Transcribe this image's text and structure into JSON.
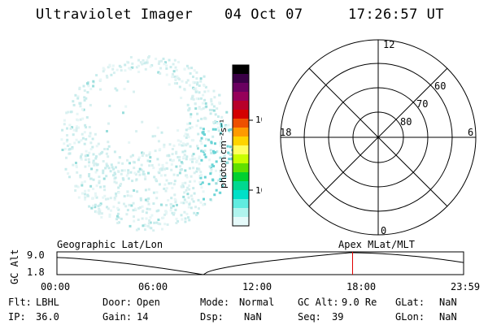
{
  "header": {
    "instrument": "Ultraviolet Imager",
    "date": "04 Oct 07",
    "time": "17:26:57 UT"
  },
  "colorbar": {
    "label": "photon cm⁻²s⁻¹",
    "ticks": [
      "100",
      "10"
    ],
    "colors": [
      "#000000",
      "#3a0046",
      "#6a0060",
      "#96005a",
      "#b8002a",
      "#d40000",
      "#ee5000",
      "#ff9a00",
      "#ffd400",
      "#ffff60",
      "#c8ff00",
      "#60e000",
      "#00d030",
      "#00d890",
      "#00e0c8",
      "#60ece0",
      "#b0f4ee",
      "#e6fafa"
    ]
  },
  "polar_plot": {
    "mlt_labels": {
      "top": "12",
      "left": "18",
      "right": "6",
      "bottom": "0"
    },
    "lat_labels": [
      "60",
      "70",
      "80"
    ]
  },
  "timeline": {
    "axis_label": "GC Alt",
    "y_ticks": [
      "9.0",
      "1.8"
    ],
    "x_ticks": [
      "00:00",
      "06:00",
      "12:00",
      "18:00",
      "23:59"
    ],
    "left_title": "Geographic Lat/Lon",
    "right_title": "Apex MLat/MLT",
    "current_marker_color": "#e00000"
  },
  "status": {
    "col1": [
      {
        "k": "Flt:",
        "v": "LBHL"
      },
      {
        "k": "IP:",
        "v": "36.0"
      }
    ],
    "col2": [
      {
        "k": "Door:",
        "v": "Open"
      },
      {
        "k": "Gain:",
        "v": "14"
      }
    ],
    "col3": [
      {
        "k": "Mode:",
        "v": "Normal"
      },
      {
        "k": "Dsp:",
        "v": "NaN"
      }
    ],
    "col4": [
      {
        "k": "GC Alt:",
        "v": "9.0 Re"
      },
      {
        "k": "Seq:",
        "v": "39"
      }
    ],
    "col5": [
      {
        "k": "GLat:",
        "v": "NaN"
      },
      {
        "k": "GLon:",
        "v": "NaN"
      }
    ]
  }
}
